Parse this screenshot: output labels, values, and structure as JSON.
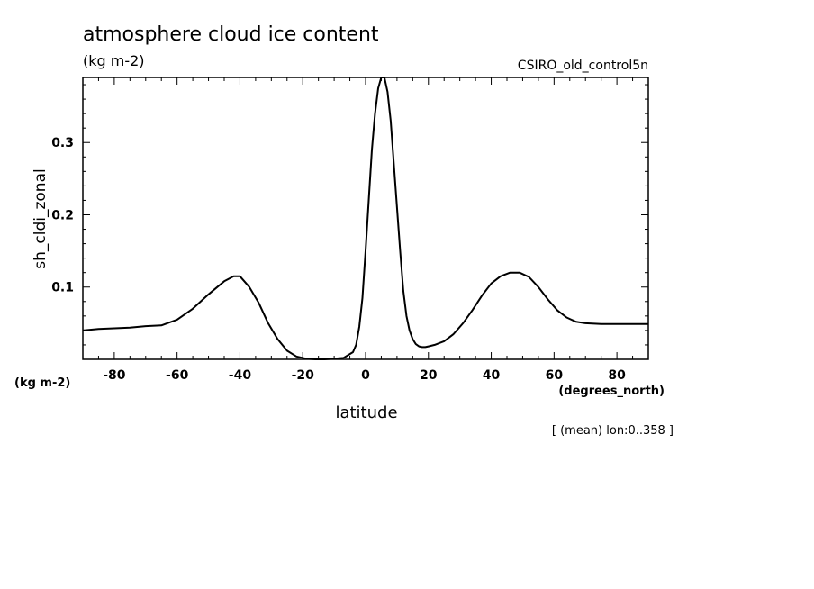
{
  "chart_data": {
    "type": "line",
    "title": "atmosphere cloud ice content",
    "subtitle": "(kg m-2)",
    "label_top_right": "CSIRO_old_control5n",
    "xlabel": "latitude",
    "xunit": "(degrees_north)",
    "ylabel": "sh_cldi_zonal",
    "yunit": "(kg m-2)",
    "footnote": "[ (mean) lon:0..358 ]",
    "xlim": [
      -90,
      90
    ],
    "ylim": [
      0,
      0.39
    ],
    "xticks": [
      -80,
      -60,
      -40,
      -20,
      0,
      20,
      40,
      60,
      80
    ],
    "xtick_labels": [
      "-80",
      "-60",
      "-40",
      "-20",
      "0",
      "20",
      "40",
      "60",
      "80"
    ],
    "yticks": [
      0.1,
      0.2,
      0.3
    ],
    "ytick_labels": [
      "0.1",
      "0.2",
      "0.3"
    ],
    "grid": false,
    "series": [
      {
        "x": [
          -90,
          -85,
          -80,
          -75,
          -70,
          -65,
          -60,
          -55,
          -50,
          -45,
          -42,
          -40,
          -37,
          -34,
          -31,
          -28,
          -25,
          -22,
          -19,
          -16,
          -13,
          -10,
          -7,
          -4,
          -3,
          -2,
          -1,
          0,
          1,
          2,
          3,
          4,
          5,
          6,
          7,
          8,
          9,
          10,
          11,
          12,
          13,
          14,
          15,
          16,
          17,
          18,
          19,
          20,
          22,
          25,
          28,
          31,
          34,
          37,
          40,
          43,
          46,
          49,
          52,
          55,
          58,
          61,
          64,
          67,
          70,
          75,
          80,
          85,
          90
        ],
        "y": [
          0.04,
          0.042,
          0.043,
          0.044,
          0.046,
          0.047,
          0.055,
          0.07,
          0.09,
          0.108,
          0.115,
          0.115,
          0.1,
          0.078,
          0.05,
          0.028,
          0.012,
          0.004,
          0.001,
          0.0,
          0.0,
          0.001,
          0.002,
          0.01,
          0.02,
          0.045,
          0.085,
          0.15,
          0.22,
          0.29,
          0.34,
          0.375,
          0.39,
          0.39,
          0.37,
          0.33,
          0.27,
          0.21,
          0.15,
          0.095,
          0.06,
          0.04,
          0.028,
          0.021,
          0.018,
          0.017,
          0.017,
          0.018,
          0.02,
          0.025,
          0.035,
          0.05,
          0.068,
          0.088,
          0.105,
          0.115,
          0.12,
          0.12,
          0.114,
          0.1,
          0.083,
          0.068,
          0.058,
          0.052,
          0.05,
          0.049,
          0.049,
          0.049,
          0.049
        ]
      }
    ]
  }
}
